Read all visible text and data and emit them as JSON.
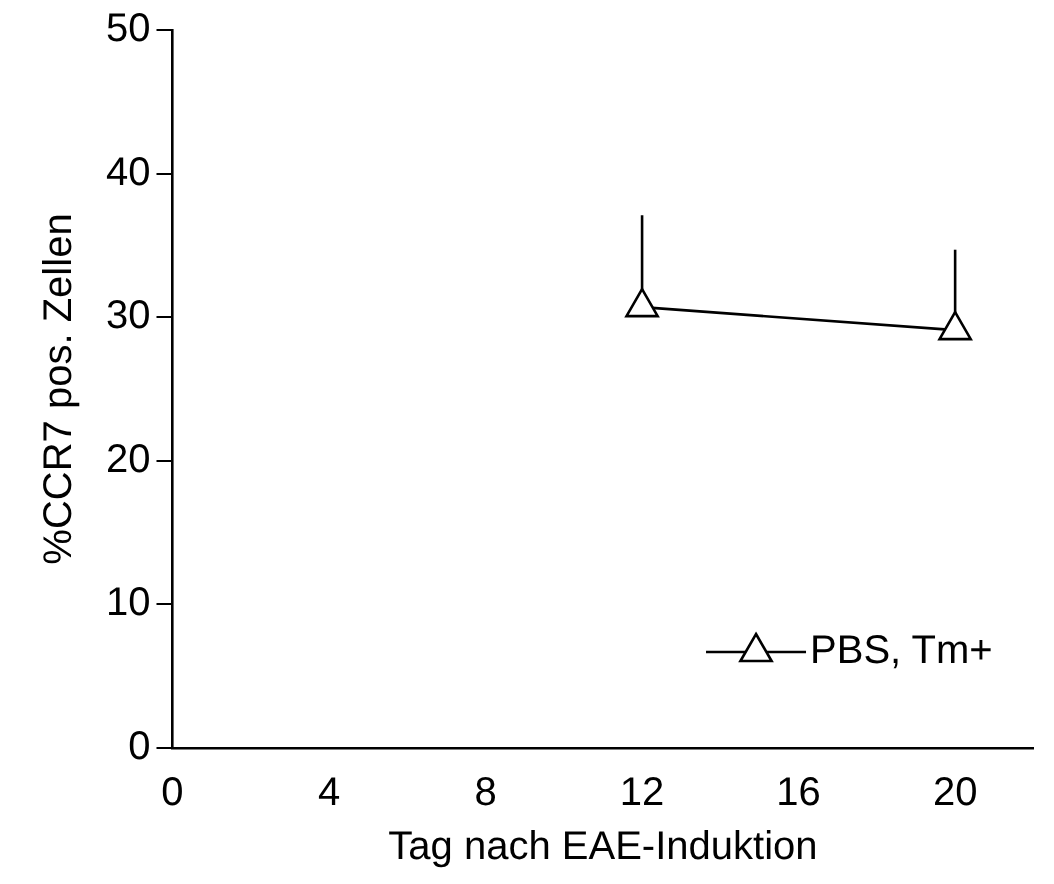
{
  "chart_data": {
    "type": "line",
    "xlabel": "Tag nach EAE-Induktion",
    "ylabel": "%CCR7 pos. Zellen",
    "x": [
      12,
      20
    ],
    "series": [
      {
        "name": "PBS, Tm+",
        "color": "#000000",
        "values": [
          30.7,
          29.1
        ],
        "errors": [
          [
            30.7,
            37.1
          ],
          [
            29.1,
            34.7
          ]
        ]
      }
    ],
    "xlim": [
      0,
      22
    ],
    "xticks": [
      0,
      4,
      8,
      12,
      16,
      20
    ],
    "ylim": [
      0,
      50
    ],
    "yticks": [
      0,
      10,
      20,
      30,
      40,
      50
    ],
    "grid": false,
    "legend": "bottom right",
    "marker": "triangle",
    "line_style": "solid"
  }
}
